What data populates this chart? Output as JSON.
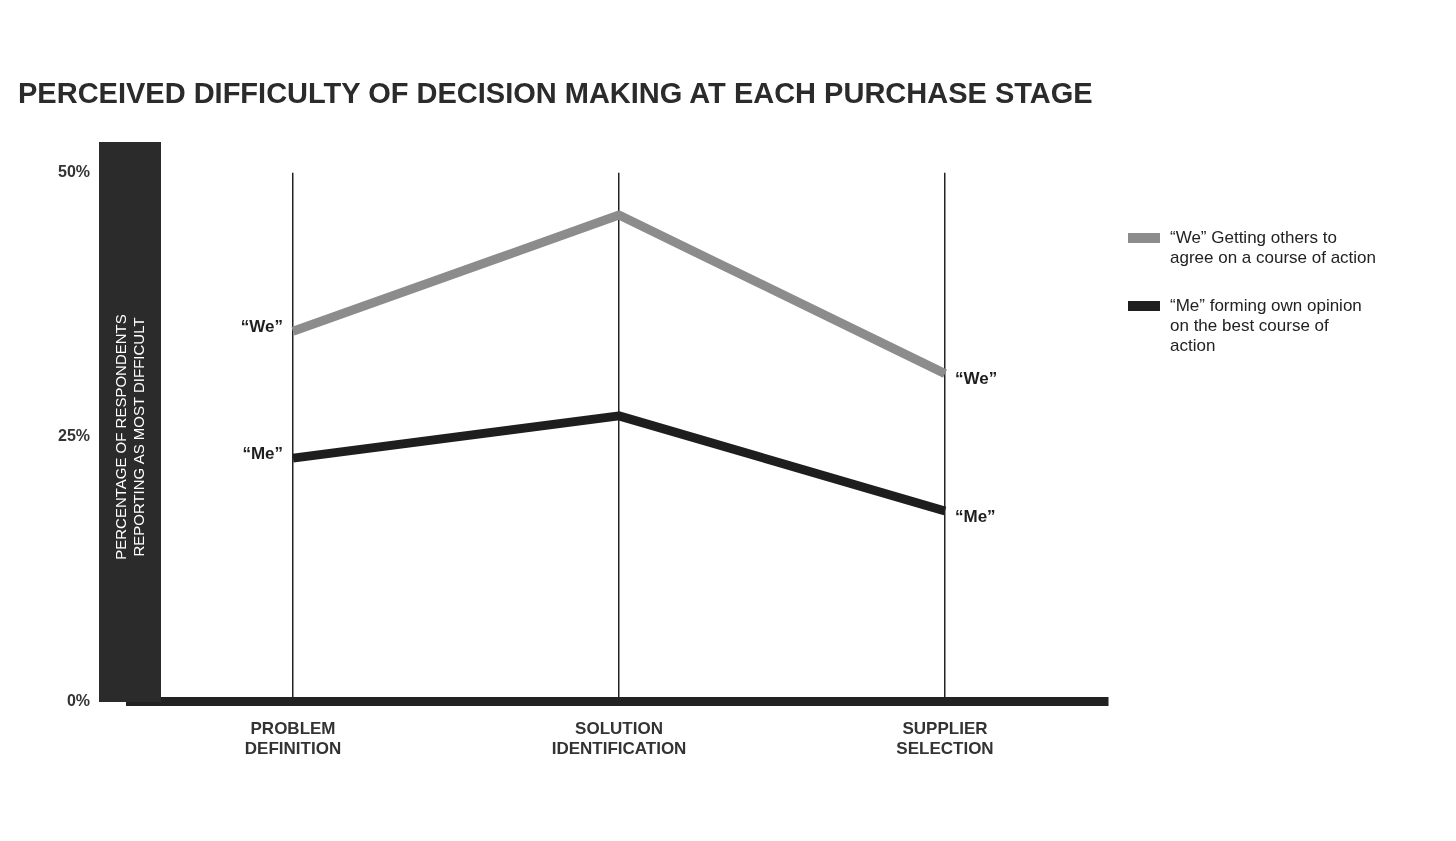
{
  "chart_data": {
    "type": "line",
    "title": "PERCEIVED DIFFICULTY OF DECISION MAKING AT EACH PURCHASE STAGE",
    "ylabel": "PERCENTAGE OF RESPONDENTS REPORTING AS MOST DIFFICULT",
    "categories": [
      "PROBLEM DEFINITION",
      "SOLUTION IDENTIFICATION",
      "SUPPLIER SELECTION"
    ],
    "series": [
      {
        "name": "“We” Getting others to agree on a course of action",
        "color": "#8c8c8c",
        "values": [
          35,
          46,
          31
        ]
      },
      {
        "name": "“Me” forming own opinion on the best course of action",
        "color": "#1e1e1e",
        "values": [
          23,
          27,
          18
        ]
      }
    ],
    "ylim": [
      0,
      50
    ],
    "yticks": [
      {
        "value": 0,
        "label": "0%"
      },
      {
        "value": 25,
        "label": "25%"
      },
      {
        "value": 50,
        "label": "50%"
      }
    ],
    "grid": "x",
    "legend": "top right",
    "marker": "none",
    "line_style": "solid",
    "annotations": [
      {
        "text": "“We”",
        "x": "PROBLEM DEFINITION",
        "y": 35
      },
      {
        "text": "“Me”",
        "x": "PROBLEM DEFINITION",
        "y": 23
      },
      {
        "text": "“We”",
        "x": "SUPPLIER SELECTION",
        "y": 31
      },
      {
        "text": "“Me”",
        "x": "SUPPLIER SELECTION",
        "y": 18
      }
    ]
  }
}
